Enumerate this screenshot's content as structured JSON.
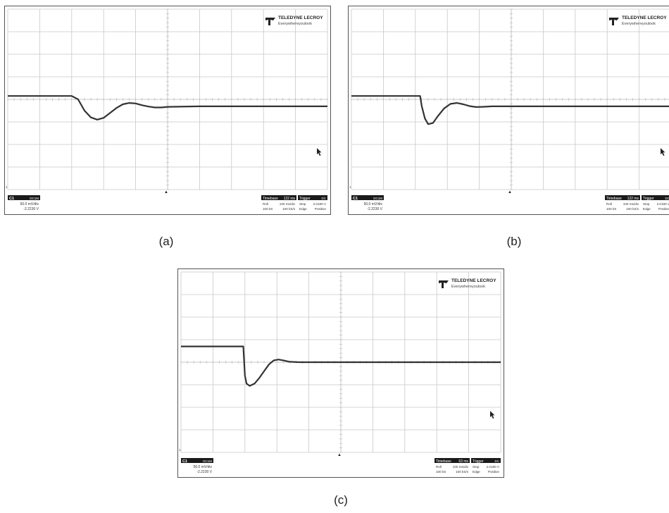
{
  "brand": {
    "name": "TELEDYNE LECROY",
    "tagline": "Everywhereyoulook"
  },
  "channel": {
    "name": "C1",
    "coupling": "DC1M",
    "scale": "50.0 mV/div",
    "offset": "-2.2230 V"
  },
  "trigger_marker": "▲",
  "colors": {
    "trace": "#333333",
    "grid": "#c8c8c8",
    "frame": "#555555",
    "badge": "#1a1a1a"
  },
  "grid": {
    "divisions_x": 10,
    "divisions_y": 8
  },
  "chart_data": [
    {
      "type": "line",
      "caption": "(a)",
      "timebase": {
        "label": "Timebase",
        "delay": "122 ms",
        "mode": "Roll",
        "rate": "100 ms/div",
        "samples": "100 kS",
        "sample_rate": "100 kS/s"
      },
      "trigger": {
        "label": "Trigger",
        "coupling": "DC",
        "state": "Stop",
        "level": "2.0180 V",
        "type": "Edge",
        "slope": "Positive"
      },
      "xlim": [
        0,
        10
      ],
      "ylim": [
        -4,
        4
      ],
      "series": [
        {
          "x": [
            0,
            2.0,
            2.2,
            2.4,
            2.6,
            2.8,
            3.0,
            3.2,
            3.4,
            3.6,
            3.8,
            4.0,
            4.2,
            4.4,
            4.6,
            4.8,
            5.0,
            6.0,
            8.0,
            10.0
          ],
          "y": [
            0.15,
            0.15,
            0.0,
            -0.5,
            -0.8,
            -0.9,
            -0.82,
            -0.6,
            -0.38,
            -0.22,
            -0.16,
            -0.18,
            -0.26,
            -0.32,
            -0.36,
            -0.36,
            -0.33,
            -0.31,
            -0.31,
            -0.31
          ]
        }
      ]
    },
    {
      "type": "line",
      "caption": "(b)",
      "timebase": {
        "label": "Timebase",
        "delay": "122 ms",
        "mode": "Roll",
        "rate": "100 ms/div",
        "samples": "100 kS",
        "sample_rate": "100 kS/s"
      },
      "trigger": {
        "label": "Trigger",
        "coupling": "DC",
        "state": "Stop",
        "level": "2.0180 V",
        "type": "Edge",
        "slope": "Positive"
      },
      "xlim": [
        0,
        10
      ],
      "ylim": [
        -4,
        4
      ],
      "series": [
        {
          "x": [
            0,
            2.15,
            2.2,
            2.3,
            2.4,
            2.55,
            2.7,
            2.9,
            3.1,
            3.3,
            3.5,
            3.7,
            3.9,
            4.1,
            4.4,
            6.0,
            8.0,
            10.0
          ],
          "y": [
            0.15,
            0.15,
            -0.3,
            -0.85,
            -1.1,
            -1.05,
            -0.75,
            -0.4,
            -0.2,
            -0.16,
            -0.22,
            -0.3,
            -0.34,
            -0.33,
            -0.31,
            -0.31,
            -0.31,
            -0.31
          ]
        }
      ]
    },
    {
      "type": "line",
      "caption": "(c)",
      "timebase": {
        "label": "Timebase",
        "delay": "63 ms",
        "mode": "Roll",
        "rate": "100 ms/div",
        "samples": "100 kS",
        "sample_rate": "100 kS/s"
      },
      "trigger": {
        "label": "Trigger",
        "coupling": "DC",
        "state": "Stop",
        "level": "2.0180 V",
        "type": "Edge",
        "slope": "Positive"
      },
      "xlim": [
        0,
        10
      ],
      "ylim": [
        -4,
        4
      ],
      "series": [
        {
          "x": [
            0,
            1.95,
            2.0,
            2.05,
            2.15,
            2.3,
            2.45,
            2.6,
            2.75,
            2.9,
            3.05,
            3.2,
            3.4,
            3.7,
            4.0,
            6.0,
            8.0,
            10.0
          ],
          "y": [
            0.7,
            0.7,
            -0.6,
            -0.95,
            -1.05,
            -0.95,
            -0.7,
            -0.4,
            -0.1,
            0.08,
            0.12,
            0.08,
            0.02,
            0.0,
            0.0,
            0.0,
            0.0,
            0.0
          ]
        }
      ]
    }
  ]
}
